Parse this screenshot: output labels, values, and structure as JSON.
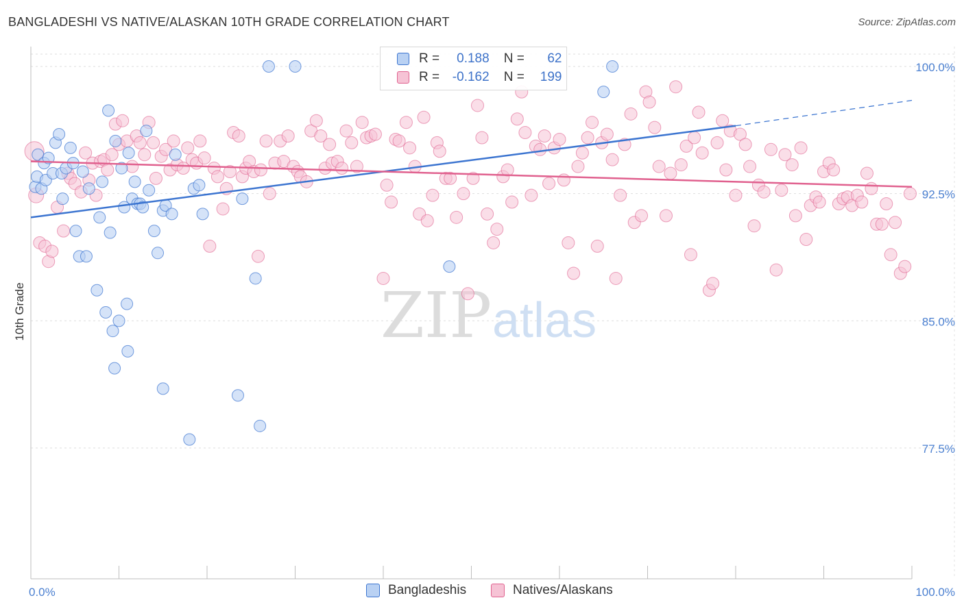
{
  "title": "BANGLADESHI VS NATIVE/ALASKAN 10TH GRADE CORRELATION CHART",
  "source": "Source: ZipAtlas.com",
  "watermark": {
    "part1": "ZIP",
    "part2": "atlas"
  },
  "legend": {
    "rows": [
      {
        "r_label": "R =",
        "r_value": "0.188",
        "n_label": "N =",
        "n_value": "62"
      },
      {
        "r_label": "R =",
        "r_value": "-0.162",
        "n_label": "N =",
        "n_value": "199"
      }
    ]
  },
  "bottom_legend": {
    "blue": "Bangladeshis",
    "pink": "Natives/Alaskans"
  },
  "colors": {
    "blue": "#3b74d0",
    "blue_fill": "#b9d1f3",
    "pink": "#e0608e",
    "pink_fill": "#f6c3d5",
    "tick": "#4a7fd0"
  },
  "chart_data": {
    "type": "scatter",
    "title": "BANGLADESHI VS NATIVE/ALASKAN 10TH GRADE CORRELATION CHART",
    "xlabel": "",
    "ylabel": "10th Grade",
    "xlim": [
      0,
      100
    ],
    "ylim": [
      70.0,
      100.8
    ],
    "x_tick_labels": [
      "0.0%",
      "100.0%"
    ],
    "y_ticks": [
      77.5,
      85.0,
      92.5,
      100.0
    ],
    "y_tick_labels": [
      "77.5%",
      "85.0%",
      "92.5%",
      "100.0%"
    ],
    "legend_position": "top-center",
    "grid": true,
    "series": [
      {
        "name": "Bangladeshis",
        "color": "#3b74d0",
        "R": 0.188,
        "N": 62,
        "trend": {
          "x0": 0,
          "y0": 91.1,
          "x1": 80,
          "y1": 96.5,
          "dashed_to_x": 100,
          "dashed_to_y": 98.0
        },
        "points": [
          [
            0.5,
            92.9
          ],
          [
            0.7,
            93.5
          ],
          [
            0.8,
            94.8
          ],
          [
            1.2,
            92.8
          ],
          [
            1.5,
            94.3
          ],
          [
            1.7,
            93.3
          ],
          [
            2.0,
            94.6
          ],
          [
            2.5,
            93.7
          ],
          [
            2.8,
            95.5
          ],
          [
            3.2,
            96.0
          ],
          [
            3.5,
            93.7
          ],
          [
            3.6,
            92.2
          ],
          [
            4.0,
            94.0
          ],
          [
            4.5,
            95.2
          ],
          [
            4.8,
            94.3
          ],
          [
            5.1,
            90.3
          ],
          [
            5.5,
            88.8
          ],
          [
            5.9,
            93.8
          ],
          [
            6.3,
            88.8
          ],
          [
            6.6,
            92.8
          ],
          [
            7.5,
            86.8
          ],
          [
            7.8,
            91.1
          ],
          [
            8.1,
            93.2
          ],
          [
            8.5,
            85.5
          ],
          [
            8.8,
            97.4
          ],
          [
            9.0,
            90.2
          ],
          [
            9.3,
            84.4
          ],
          [
            9.6,
            95.6
          ],
          [
            10.0,
            85.0
          ],
          [
            10.3,
            94.0
          ],
          [
            10.6,
            91.7
          ],
          [
            10.9,
            86.0
          ],
          [
            11.1,
            94.9
          ],
          [
            11.5,
            92.2
          ],
          [
            11.8,
            93.2
          ],
          [
            12.1,
            91.9
          ],
          [
            12.4,
            91.9
          ],
          [
            12.7,
            91.7
          ],
          [
            13.1,
            96.2
          ],
          [
            13.4,
            92.7
          ],
          [
            14.0,
            90.3
          ],
          [
            14.4,
            89.0
          ],
          [
            15.0,
            91.5
          ],
          [
            15.3,
            91.8
          ],
          [
            16.0,
            91.3
          ],
          [
            16.4,
            94.8
          ],
          [
            18.5,
            92.8
          ],
          [
            19.1,
            93.0
          ],
          [
            19.5,
            91.3
          ],
          [
            24.0,
            92.2
          ],
          [
            25.5,
            87.5
          ],
          [
            27.0,
            100.0
          ],
          [
            30.0,
            100.0
          ],
          [
            26.0,
            78.8
          ],
          [
            23.5,
            80.6
          ],
          [
            18.0,
            78.0
          ],
          [
            15.0,
            81.0
          ],
          [
            11.0,
            83.2
          ],
          [
            9.5,
            82.2
          ],
          [
            47.5,
            88.2
          ],
          [
            66.0,
            100.0
          ],
          [
            65.0,
            98.5
          ]
        ]
      },
      {
        "name": "Natives/Alaskans",
        "color": "#e0608e",
        "R": -0.162,
        "N": 199,
        "trend": {
          "x0": 0,
          "y0": 94.4,
          "x1": 100,
          "y1": 92.9
        },
        "points": [
          [
            0.4,
            95.0
          ],
          [
            0.6,
            92.4
          ],
          [
            1.0,
            89.6
          ],
          [
            1.6,
            89.4
          ],
          [
            2.0,
            88.5
          ],
          [
            2.4,
            89.1
          ],
          [
            3.0,
            91.7
          ],
          [
            3.7,
            90.3
          ],
          [
            4.2,
            93.7
          ],
          [
            4.5,
            93.4
          ],
          [
            5.0,
            93.1
          ],
          [
            5.7,
            92.6
          ],
          [
            6.2,
            94.9
          ],
          [
            6.6,
            93.3
          ],
          [
            7.0,
            94.3
          ],
          [
            7.4,
            92.4
          ],
          [
            7.9,
            94.4
          ],
          [
            8.3,
            94.5
          ],
          [
            8.7,
            93.9
          ],
          [
            9.2,
            94.8
          ],
          [
            9.6,
            96.6
          ],
          [
            10.0,
            95.4
          ],
          [
            10.4,
            96.8
          ],
          [
            10.9,
            95.6
          ],
          [
            11.5,
            94.1
          ],
          [
            12.0,
            95.9
          ],
          [
            12.4,
            95.5
          ],
          [
            12.9,
            94.8
          ],
          [
            13.4,
            96.7
          ],
          [
            13.9,
            95.5
          ],
          [
            14.2,
            93.4
          ],
          [
            14.8,
            94.7
          ],
          [
            15.3,
            95.1
          ],
          [
            15.8,
            93.9
          ],
          [
            16.2,
            95.6
          ],
          [
            16.6,
            94.2
          ],
          [
            17.3,
            94.0
          ],
          [
            17.8,
            95.2
          ],
          [
            18.3,
            94.5
          ],
          [
            18.8,
            94.3
          ],
          [
            19.2,
            95.6
          ],
          [
            19.7,
            94.6
          ],
          [
            20.3,
            89.4
          ],
          [
            20.8,
            94.0
          ],
          [
            21.2,
            93.5
          ],
          [
            21.8,
            91.6
          ],
          [
            22.2,
            92.8
          ],
          [
            22.6,
            93.8
          ],
          [
            23.0,
            96.1
          ],
          [
            23.6,
            95.9
          ],
          [
            24.0,
            93.5
          ],
          [
            24.4,
            94.0
          ],
          [
            24.8,
            94.4
          ],
          [
            25.3,
            93.8
          ],
          [
            25.8,
            88.8
          ],
          [
            26.1,
            93.9
          ],
          [
            26.7,
            95.6
          ],
          [
            27.1,
            92.5
          ],
          [
            27.7,
            94.3
          ],
          [
            28.3,
            95.6
          ],
          [
            28.7,
            94.4
          ],
          [
            29.2,
            95.9
          ],
          [
            29.8,
            94.1
          ],
          [
            30.3,
            93.8
          ],
          [
            30.6,
            93.5
          ],
          [
            31.3,
            93.2
          ],
          [
            31.8,
            96.2
          ],
          [
            32.4,
            96.8
          ],
          [
            32.9,
            95.9
          ],
          [
            33.4,
            94.0
          ],
          [
            33.9,
            95.4
          ],
          [
            34.2,
            94.3
          ],
          [
            34.8,
            94.4
          ],
          [
            35.3,
            94.0
          ],
          [
            35.8,
            96.2
          ],
          [
            36.4,
            95.5
          ],
          [
            37.0,
            94.1
          ],
          [
            37.6,
            96.7
          ],
          [
            38.1,
            95.8
          ],
          [
            38.6,
            95.9
          ],
          [
            39.1,
            96.0
          ],
          [
            40.0,
            87.5
          ],
          [
            40.4,
            93.0
          ],
          [
            40.9,
            92.0
          ],
          [
            41.4,
            95.7
          ],
          [
            41.8,
            95.6
          ],
          [
            42.6,
            96.7
          ],
          [
            43.0,
            95.2
          ],
          [
            43.6,
            94.1
          ],
          [
            44.1,
            91.3
          ],
          [
            44.6,
            97.0
          ],
          [
            45.0,
            90.9
          ],
          [
            45.6,
            92.4
          ],
          [
            46.1,
            95.5
          ],
          [
            46.4,
            95.0
          ],
          [
            47.1,
            93.4
          ],
          [
            47.6,
            93.4
          ],
          [
            48.3,
            91.1
          ],
          [
            49.1,
            92.5
          ],
          [
            49.6,
            86.6
          ],
          [
            50.2,
            93.4
          ],
          [
            50.7,
            97.7
          ],
          [
            51.2,
            95.8
          ],
          [
            51.8,
            91.3
          ],
          [
            52.5,
            89.6
          ],
          [
            52.9,
            90.4
          ],
          [
            53.6,
            93.5
          ],
          [
            54.1,
            93.9
          ],
          [
            54.6,
            92.0
          ],
          [
            55.2,
            96.9
          ],
          [
            55.7,
            98.5
          ],
          [
            56.1,
            96.1
          ],
          [
            56.8,
            92.4
          ],
          [
            57.3,
            95.3
          ],
          [
            57.8,
            95.1
          ],
          [
            58.3,
            95.9
          ],
          [
            58.8,
            93.1
          ],
          [
            59.4,
            95.2
          ],
          [
            60.0,
            95.7
          ],
          [
            60.5,
            93.3
          ],
          [
            61.0,
            89.6
          ],
          [
            61.6,
            87.8
          ],
          [
            62.1,
            94.1
          ],
          [
            62.6,
            94.9
          ],
          [
            63.2,
            95.8
          ],
          [
            63.7,
            96.7
          ],
          [
            64.3,
            89.4
          ],
          [
            64.8,
            95.5
          ],
          [
            65.4,
            96.0
          ],
          [
            66.0,
            94.5
          ],
          [
            66.4,
            87.5
          ],
          [
            66.9,
            92.4
          ],
          [
            67.4,
            95.4
          ],
          [
            68.1,
            97.2
          ],
          [
            68.5,
            90.8
          ],
          [
            69.3,
            91.2
          ],
          [
            69.8,
            98.5
          ],
          [
            70.2,
            97.9
          ],
          [
            70.8,
            96.4
          ],
          [
            71.3,
            94.1
          ],
          [
            72.1,
            91.2
          ],
          [
            72.6,
            93.7
          ],
          [
            73.2,
            98.8
          ],
          [
            73.8,
            94.2
          ],
          [
            74.4,
            95.3
          ],
          [
            74.9,
            88.9
          ],
          [
            75.3,
            95.8
          ],
          [
            75.8,
            97.3
          ],
          [
            76.2,
            94.9
          ],
          [
            77.0,
            86.8
          ],
          [
            77.4,
            87.2
          ],
          [
            77.9,
            95.5
          ],
          [
            78.5,
            96.8
          ],
          [
            78.9,
            93.9
          ],
          [
            79.4,
            96.2
          ],
          [
            80.0,
            92.4
          ],
          [
            80.5,
            96.0
          ],
          [
            81.1,
            95.4
          ],
          [
            81.6,
            94.1
          ],
          [
            82.1,
            90.6
          ],
          [
            82.6,
            93.0
          ],
          [
            83.2,
            92.6
          ],
          [
            84.0,
            95.1
          ],
          [
            84.6,
            88.0
          ],
          [
            85.2,
            92.7
          ],
          [
            85.6,
            94.8
          ],
          [
            86.4,
            94.2
          ],
          [
            86.8,
            91.2
          ],
          [
            87.4,
            95.2
          ],
          [
            88.0,
            89.8
          ],
          [
            88.5,
            91.8
          ],
          [
            89.1,
            92.3
          ],
          [
            89.5,
            92.0
          ],
          [
            90.0,
            93.8
          ],
          [
            90.6,
            94.3
          ],
          [
            91.1,
            93.9
          ],
          [
            91.7,
            91.9
          ],
          [
            92.2,
            92.2
          ],
          [
            92.7,
            92.3
          ],
          [
            93.2,
            91.8
          ],
          [
            93.8,
            92.4
          ],
          [
            94.3,
            92.0
          ],
          [
            94.9,
            93.7
          ],
          [
            95.4,
            92.8
          ],
          [
            96.0,
            90.7
          ],
          [
            96.6,
            90.7
          ],
          [
            97.1,
            91.9
          ],
          [
            97.6,
            88.9
          ],
          [
            98.1,
            90.8
          ],
          [
            98.7,
            87.8
          ],
          [
            99.2,
            88.2
          ],
          [
            99.8,
            92.5
          ]
        ]
      }
    ]
  }
}
